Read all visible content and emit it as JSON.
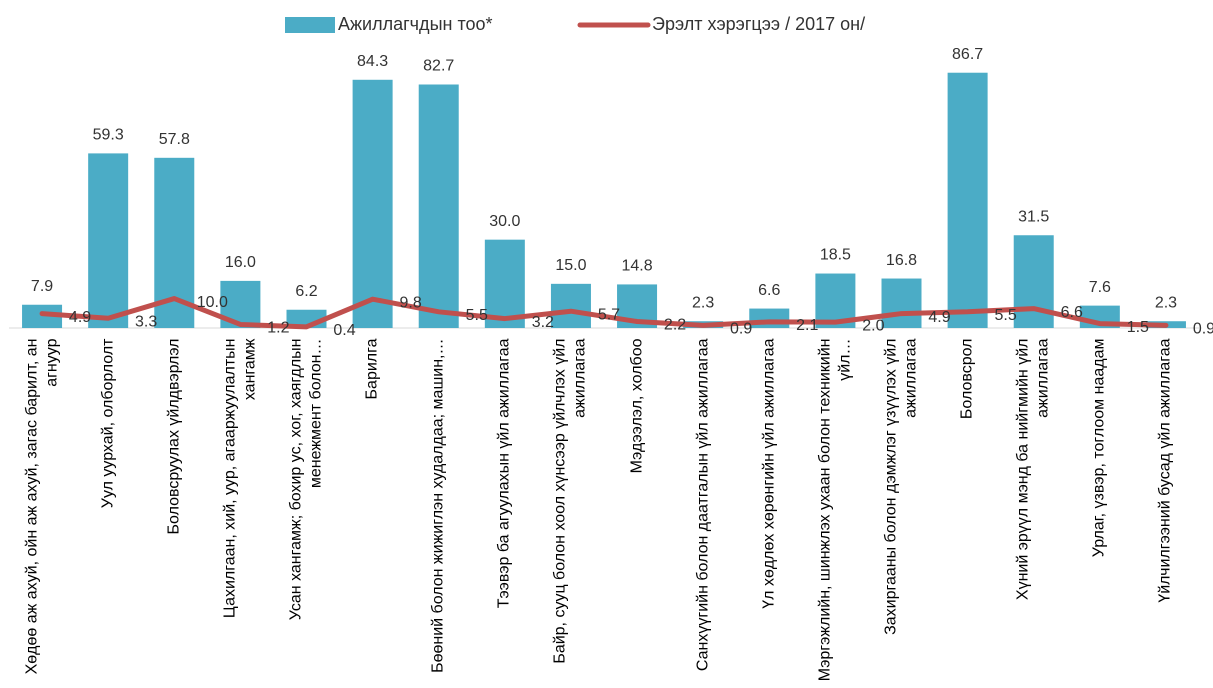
{
  "chart_data": {
    "type": "bar-line",
    "categories": [
      "Хөдөө аж ахуй, ойн аж ахуй, загас барилт, ан агнуур",
      "Уул уурхай, олборлолт",
      "Боловсруулах үйлдвэрлэл",
      "Цахилгаан, хий, уур, агааржуулалтын хангамж",
      "Усан хангамж; бохир ус, хог, хаягдлын менежмент болон…",
      "Барилга",
      "Бөөний болон жижиглэн худалдаа; машин,…",
      "Тээвэр ба агуулахын үйл ажиллагаа",
      "Байр, сууц болон хоол хүнсээр үйлчлэх үйл ажиллагаа",
      "Мэдээлэл, холбоо",
      "Санхүүгийн болон даатгалын үйл ажиллагаа",
      "Үл хөдлөх хөрөнгийн үйл ажиллагаа",
      "Мэргэжлийн, шинжлэх ухаан болон техникийн үйл…",
      "Захиргааны болон дэмжлэг үзүүлэх үйл ажиллагаа",
      "Боловсрол",
      "Хүний эрүүл мэнд ба нийгмийн үйл ажиллагаа",
      "Урлаг, үзвэр, тоглоом наадам",
      "Үйлчилгээний бусад үйл ажиллагаа"
    ],
    "series": [
      {
        "name": "Ажиллагчдын тоо*",
        "type": "bar",
        "color": "#4bacc6",
        "values": [
          7.9,
          59.3,
          57.8,
          16.0,
          6.2,
          84.3,
          82.7,
          30.0,
          15.0,
          14.8,
          2.3,
          6.6,
          18.5,
          16.8,
          86.7,
          31.5,
          7.6,
          2.3
        ],
        "value_labels": [
          "7.9",
          "59.3",
          "57.8",
          "16.0",
          "6.2",
          "84.3",
          "82.7",
          "30.0",
          "15.0",
          "14.8",
          "2.3",
          "6.6",
          "18.5",
          "16.8",
          "86.7",
          "31.5",
          "7.6",
          "2.3"
        ]
      },
      {
        "name": "Эрэлт хэрэгцээ / 2017 он/",
        "type": "line",
        "color": "#c0504d",
        "values": [
          4.9,
          3.3,
          10.0,
          1.2,
          0.4,
          9.8,
          5.5,
          3.2,
          5.7,
          2.2,
          0.9,
          2.1,
          2.0,
          4.9,
          5.5,
          6.6,
          1.5,
          0.9
        ],
        "value_labels": [
          "4.9",
          "3.3",
          "10.0",
          "1.2",
          "0.4",
          "9.8",
          "5.5",
          "3.2",
          "5.7",
          "2.2",
          "0.9",
          "2.1",
          "2.0",
          "4.9",
          "5.5",
          "6.6",
          "1.5",
          "0.9"
        ]
      }
    ],
    "ylim": [
      0,
      90
    ],
    "legend": "top"
  }
}
